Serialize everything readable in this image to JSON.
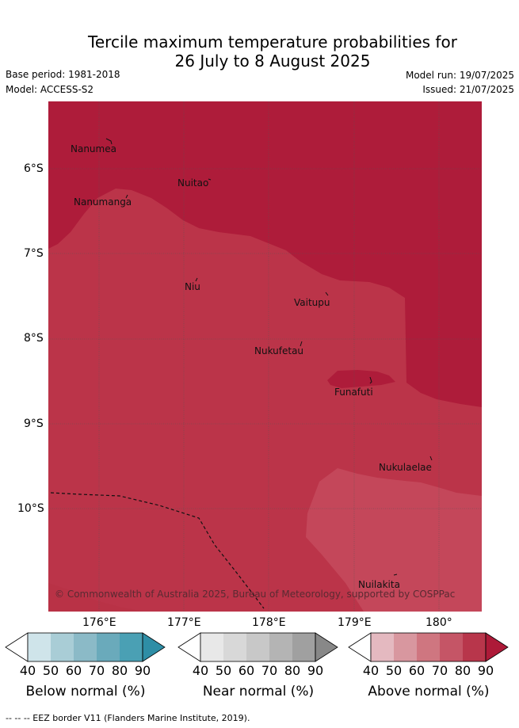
{
  "title_line1": "Tercile maximum temperature probabilities for",
  "title_line2": "26 July to 8 August 2025",
  "meta": {
    "base_period": "Base period: 1981-2018",
    "model": "Model: ACCESS-S2",
    "model_run": "Model run: 19/07/2025",
    "issued": "Issued: 21/07/2025"
  },
  "lat_labels": [
    "6°S",
    "7°S",
    "8°S",
    "9°S",
    "10°S"
  ],
  "lon_labels": [
    "176°E",
    "177°E",
    "178°E",
    "179°E",
    "180°"
  ],
  "places": [
    "Nanumea",
    "Nuitao",
    "Nanumanga",
    "Niu",
    "Vaitupu",
    "Nukufetau",
    "Funafuti",
    "Nukulaelae",
    "Nuilakita"
  ],
  "copyright": "© Commonwealth of Australia 2025, Bureau of Meteorology, supported by COSPPac",
  "colorbars": [
    {
      "label": "Below normal (%)",
      "ticks": [
        "40",
        "50",
        "60",
        "70",
        "80",
        "90"
      ],
      "colors": [
        "#ffffff",
        "#cfe4ea",
        "#a9cdd6",
        "#8bbac7",
        "#6aaabb",
        "#4aa0b4",
        "#2e8ea6"
      ]
    },
    {
      "label": "Near normal (%)",
      "ticks": [
        "40",
        "50",
        "60",
        "70",
        "80",
        "90"
      ],
      "colors": [
        "#ffffff",
        "#e8e8e8",
        "#d8d8d8",
        "#c8c8c8",
        "#b4b4b4",
        "#a0a0a0",
        "#888888"
      ]
    },
    {
      "label": "Above normal (%)",
      "ticks": [
        "40",
        "50",
        "60",
        "70",
        "80",
        "90"
      ],
      "colors": [
        "#ffffff",
        "#e4b9c0",
        "#d8979f",
        "#cf7680",
        "#c55566",
        "#b8364b",
        "#ad1a38"
      ]
    }
  ],
  "footer": "--  --  -- EEZ border V11 (Flanders Marine Institute, 2019)."
}
